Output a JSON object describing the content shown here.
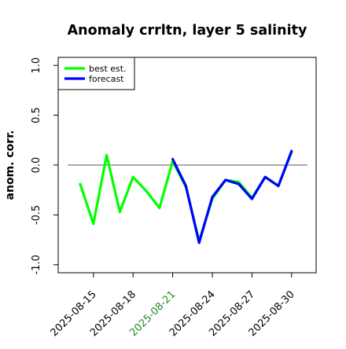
{
  "chart_data": {
    "type": "line",
    "title": "Anomaly crrltn, layer 5 salinity",
    "ylabel": "anom. corr.",
    "xlabel": "",
    "ylim": [
      -1.0,
      1.0
    ],
    "yticks": [
      -1.0,
      -0.5,
      0.0,
      0.5,
      1.0
    ],
    "ytick_labels": [
      "-1.0",
      "-0.5",
      "0.0",
      "0.5",
      "1.0"
    ],
    "xticks": [
      {
        "label": "2025-08-15",
        "color": "#000000"
      },
      {
        "label": "2025-08-18",
        "color": "#000000"
      },
      {
        "label": "2025-08-21",
        "color": "#228B22"
      },
      {
        "label": "2025-08-24",
        "color": "#000000"
      },
      {
        "label": "2025-08-27",
        "color": "#000000"
      },
      {
        "label": "2025-08-30",
        "color": "#000000"
      }
    ],
    "x": [
      "2025-08-14",
      "2025-08-15",
      "2025-08-16",
      "2025-08-17",
      "2025-08-18",
      "2025-08-19",
      "2025-08-20",
      "2025-08-21",
      "2025-08-22",
      "2025-08-23",
      "2025-08-24",
      "2025-08-25",
      "2025-08-26",
      "2025-08-27",
      "2025-08-28",
      "2025-08-29",
      "2025-08-30"
    ],
    "reference_line": 0.0,
    "legend_position": "top-left",
    "grid": false,
    "series": [
      {
        "name": "best est.",
        "color": "#00ff00",
        "x": [
          "2025-08-14",
          "2025-08-15",
          "2025-08-16",
          "2025-08-17",
          "2025-08-18",
          "2025-08-19",
          "2025-08-20",
          "2025-08-21",
          "2025-08-22",
          "2025-08-23",
          "2025-08-24",
          "2025-08-25",
          "2025-08-26",
          "2025-08-27",
          "2025-08-28",
          "2025-08-29",
          "2025-08-30"
        ],
        "values": [
          -0.19,
          -0.59,
          0.1,
          -0.47,
          -0.12,
          -0.26,
          -0.43,
          0.04,
          -0.22,
          -0.76,
          -0.34,
          -0.15,
          -0.17,
          -0.33,
          -0.12,
          -0.21,
          0.13
        ]
      },
      {
        "name": "forecast",
        "color": "#0000ff",
        "x": [
          "2025-08-21",
          "2025-08-22",
          "2025-08-23",
          "2025-08-24",
          "2025-08-25",
          "2025-08-26",
          "2025-08-27",
          "2025-08-28",
          "2025-08-29",
          "2025-08-30"
        ],
        "values": [
          0.06,
          -0.21,
          -0.78,
          -0.32,
          -0.15,
          -0.19,
          -0.34,
          -0.12,
          -0.21,
          0.14
        ]
      }
    ]
  }
}
